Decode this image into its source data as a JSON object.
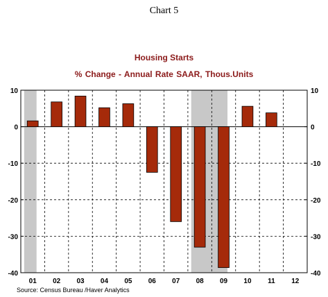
{
  "page": {
    "title": "Chart 5",
    "source": "Source:  Census Bureau /Haver Analytics"
  },
  "chart_data": {
    "type": "bar",
    "title": "Housing Starts",
    "subtitle": "% Change - Annual Rate      SAAR, Thous.Units",
    "categories": [
      "01",
      "02",
      "03",
      "04",
      "05",
      "06",
      "07",
      "08",
      "09",
      "10",
      "11",
      "12"
    ],
    "values": [
      1.6,
      6.8,
      8.4,
      5.2,
      6.3,
      -12.5,
      -26.0,
      -33.0,
      -38.6,
      5.6,
      3.8,
      null
    ],
    "ylim": [
      -40,
      10
    ],
    "yticks": [
      10,
      0,
      -10,
      -20,
      -30,
      -40
    ],
    "ytick_labels": [
      "10",
      "0",
      "-10",
      "-20",
      "-30",
      "-40"
    ],
    "recession_shading": [
      {
        "from": "01",
        "to": "01"
      },
      {
        "from": "08",
        "to": "09"
      }
    ],
    "grid": "dashed",
    "colors": {
      "bar": "#A52A0A",
      "recession": "#C8C8C8",
      "title": "#8B1A1A"
    }
  }
}
